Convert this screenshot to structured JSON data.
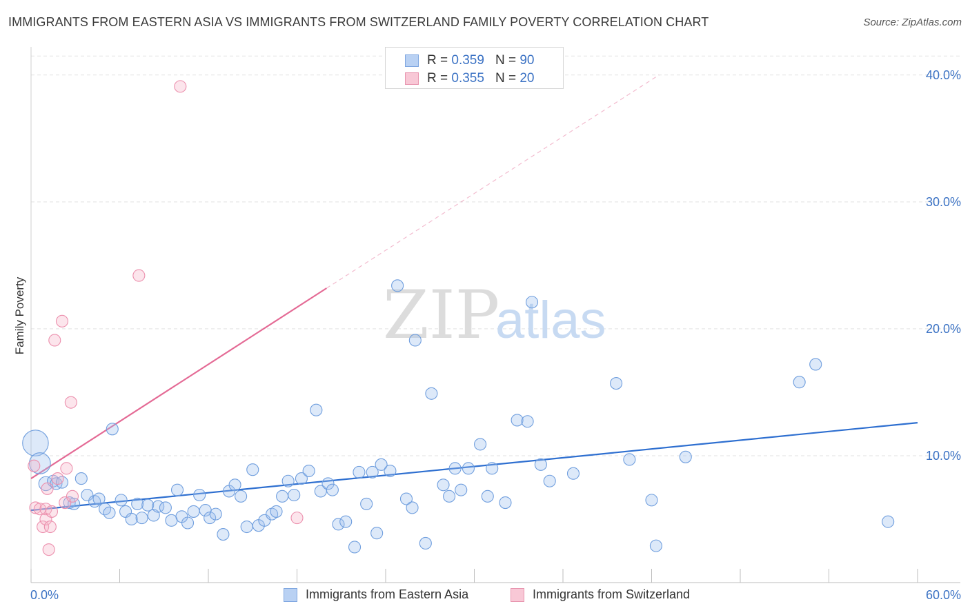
{
  "title": "IMMIGRANTS FROM EASTERN ASIA VS IMMIGRANTS FROM SWITZERLAND FAMILY POVERTY CORRELATION CHART",
  "source": "Source: ZipAtlas.com",
  "watermark": {
    "zip": "ZIP",
    "atlas": "atlas"
  },
  "legend": {
    "r_label": "R =",
    "n_label": "N =",
    "rows": [
      {
        "r": "0.359",
        "n": "90",
        "fill": "#b9d1f3",
        "stroke": "#7ea6e0"
      },
      {
        "r": "0.355",
        "n": "20",
        "fill": "#f8c8d6",
        "stroke": "#e894ae"
      }
    ]
  },
  "colors": {
    "blue_fill": "rgba(158,192,238,0.35)",
    "blue_stroke": "#6f9ede",
    "blue_line": "#2e6fd0",
    "pink_fill": "rgba(246,180,200,0.35)",
    "pink_stroke": "#ec8fad",
    "pink_line": "#e46a95",
    "grid": "#e2e2e2",
    "tick_text": "#3b72c4"
  },
  "chart_data": {
    "type": "scatter",
    "title": "IMMIGRANTS FROM EASTERN ASIA VS IMMIGRANTS FROM SWITZERLAND FAMILY POVERTY CORRELATION CHART",
    "xlabel": "",
    "ylabel": "Family Poverty",
    "xlim": [
      0,
      60
    ],
    "ylim": [
      0,
      42
    ],
    "x_tick_labels": {
      "min": "0.0%",
      "max": "60.0%"
    },
    "y_ticks": [
      {
        "value": 10,
        "label": "10.0%"
      },
      {
        "value": 20,
        "label": "20.0%"
      },
      {
        "value": 30,
        "label": "30.0%"
      },
      {
        "value": 40,
        "label": "40.0%"
      }
    ],
    "series": [
      {
        "name": "Immigrants from Eastern Asia",
        "color": "blue",
        "trend": {
          "x0": 0,
          "y0": 5.7,
          "x1": 60,
          "y1": 12.6,
          "dashed_to": null
        },
        "points": [
          [
            0.3,
            11.0,
            2.2
          ],
          [
            0.6,
            9.4,
            1.8
          ],
          [
            1.0,
            7.8,
            1.2
          ],
          [
            1.5,
            8.0,
            1.0
          ],
          [
            1.7,
            7.8,
            1.0
          ],
          [
            2.1,
            7.9,
            1.0
          ],
          [
            2.6,
            6.3,
            1.0
          ],
          [
            2.9,
            6.2,
            1.0
          ],
          [
            3.4,
            8.2,
            1.0
          ],
          [
            3.8,
            6.9,
            1.0
          ],
          [
            4.3,
            6.4,
            1.0
          ],
          [
            4.6,
            6.6,
            1.0
          ],
          [
            5.0,
            5.8,
            1.0
          ],
          [
            5.3,
            5.5,
            1.0
          ],
          [
            5.5,
            12.1,
            1.0
          ],
          [
            6.1,
            6.5,
            1.0
          ],
          [
            6.4,
            5.6,
            1.0
          ],
          [
            6.8,
            5.0,
            1.0
          ],
          [
            7.2,
            6.2,
            1.0
          ],
          [
            7.5,
            5.1,
            1.0
          ],
          [
            7.9,
            6.1,
            1.0
          ],
          [
            8.3,
            5.3,
            1.0
          ],
          [
            8.6,
            6.0,
            1.0
          ],
          [
            9.1,
            5.9,
            1.0
          ],
          [
            9.5,
            4.9,
            1.0
          ],
          [
            9.9,
            7.3,
            1.0
          ],
          [
            10.2,
            5.2,
            1.0
          ],
          [
            10.6,
            4.7,
            1.0
          ],
          [
            11.0,
            5.6,
            1.0
          ],
          [
            11.4,
            6.9,
            1.0
          ],
          [
            11.8,
            5.7,
            1.0
          ],
          [
            12.1,
            5.1,
            1.0
          ],
          [
            12.5,
            5.4,
            1.0
          ],
          [
            13.0,
            3.8,
            1.0
          ],
          [
            13.4,
            7.2,
            1.0
          ],
          [
            13.8,
            7.7,
            1.0
          ],
          [
            14.2,
            6.8,
            1.0
          ],
          [
            14.6,
            4.4,
            1.0
          ],
          [
            15.0,
            8.9,
            1.0
          ],
          [
            15.4,
            4.5,
            1.0
          ],
          [
            15.8,
            4.9,
            1.0
          ],
          [
            16.3,
            5.4,
            1.0
          ],
          [
            16.6,
            5.6,
            1.0
          ],
          [
            17.0,
            6.8,
            1.0
          ],
          [
            17.4,
            8.0,
            1.0
          ],
          [
            17.8,
            6.9,
            1.0
          ],
          [
            18.3,
            8.2,
            1.0
          ],
          [
            18.8,
            8.8,
            1.0
          ],
          [
            19.3,
            13.6,
            1.0
          ],
          [
            19.6,
            7.2,
            1.0
          ],
          [
            20.1,
            7.8,
            1.0
          ],
          [
            20.4,
            7.3,
            1.0
          ],
          [
            20.8,
            4.6,
            1.0
          ],
          [
            21.3,
            4.8,
            1.0
          ],
          [
            21.9,
            2.8,
            1.0
          ],
          [
            22.2,
            8.7,
            1.0
          ],
          [
            22.7,
            6.2,
            1.0
          ],
          [
            23.1,
            8.7,
            1.0
          ],
          [
            23.4,
            3.9,
            1.0
          ],
          [
            23.7,
            9.3,
            1.0
          ],
          [
            24.3,
            8.8,
            1.0
          ],
          [
            24.8,
            23.4,
            1.0
          ],
          [
            25.4,
            6.6,
            1.0
          ],
          [
            25.8,
            5.9,
            1.0
          ],
          [
            26.0,
            19.1,
            1.0
          ],
          [
            26.7,
            3.1,
            1.0
          ],
          [
            27.1,
            14.9,
            1.0
          ],
          [
            27.9,
            7.7,
            1.0
          ],
          [
            28.3,
            6.8,
            1.0
          ],
          [
            28.7,
            9.0,
            1.0
          ],
          [
            29.1,
            7.3,
            1.0
          ],
          [
            29.6,
            9.0,
            1.0
          ],
          [
            30.4,
            10.9,
            1.0
          ],
          [
            30.9,
            6.8,
            1.0
          ],
          [
            31.2,
            9.0,
            1.0
          ],
          [
            32.1,
            6.3,
            1.0
          ],
          [
            32.9,
            12.8,
            1.0
          ],
          [
            33.6,
            12.7,
            1.0
          ],
          [
            33.9,
            22.1,
            1.0
          ],
          [
            34.5,
            9.3,
            1.0
          ],
          [
            35.1,
            8.0,
            1.0
          ],
          [
            36.7,
            8.6,
            1.0
          ],
          [
            39.6,
            15.7,
            1.0
          ],
          [
            40.5,
            9.7,
            1.0
          ],
          [
            42.0,
            6.5,
            1.0
          ],
          [
            42.3,
            2.9,
            1.0
          ],
          [
            44.3,
            9.9,
            1.0
          ],
          [
            52.0,
            15.8,
            1.0
          ],
          [
            53.1,
            17.2,
            1.0
          ],
          [
            58.0,
            4.8,
            1.0
          ]
        ]
      },
      {
        "name": "Immigrants from Switzerland",
        "color": "pink",
        "trend": {
          "x0": 0,
          "y0": 8.2,
          "x1": 20,
          "y1": 23.2,
          "dashed_to": {
            "x": 42.5,
            "y": 40.0
          }
        },
        "points": [
          [
            0.2,
            9.2,
            1.0
          ],
          [
            0.3,
            5.9,
            1.0
          ],
          [
            0.6,
            5.8,
            1.0
          ],
          [
            0.8,
            4.4,
            1.0
          ],
          [
            1.0,
            5.0,
            1.0
          ],
          [
            1.0,
            5.8,
            1.0
          ],
          [
            1.1,
            7.4,
            1.0
          ],
          [
            1.2,
            2.6,
            1.0
          ],
          [
            1.3,
            4.4,
            1.0
          ],
          [
            1.4,
            5.6,
            1.0
          ],
          [
            1.6,
            19.1,
            1.0
          ],
          [
            1.8,
            8.2,
            1.0
          ],
          [
            2.1,
            20.6,
            1.0
          ],
          [
            2.3,
            6.3,
            1.0
          ],
          [
            2.4,
            9.0,
            1.0
          ],
          [
            2.7,
            14.2,
            1.0
          ],
          [
            2.8,
            6.8,
            1.0
          ],
          [
            7.3,
            24.2,
            1.0
          ],
          [
            10.1,
            39.1,
            1.0
          ],
          [
            18.0,
            5.1,
            1.0
          ]
        ]
      }
    ]
  },
  "bottom_legend": [
    {
      "label": "Immigrants from Eastern Asia"
    },
    {
      "label": "Immigrants from Switzerland"
    }
  ]
}
